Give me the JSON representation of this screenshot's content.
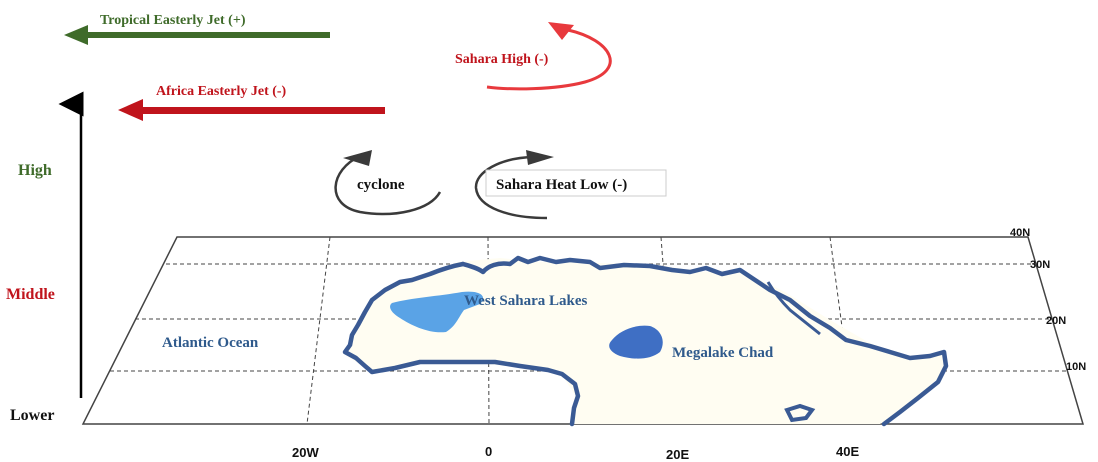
{
  "jets": {
    "tej_label": "Tropical Easterly Jet (+)",
    "aej_label": "Africa Easterly Jet (-)",
    "tej_color": "#3f6b2a",
    "aej_color": "#c0141c"
  },
  "pressure": {
    "sahara_high_label": "Sahara High (-)",
    "cyclone_label": "cyclone",
    "heat_low_label": "Sahara Heat Low (-)",
    "high_color": "#e8393d",
    "low_color": "#444444"
  },
  "levels": {
    "high": "High",
    "middle": "Middle",
    "lower": "Lower",
    "high_color": "#3f6b2a",
    "middle_color": "#c0141c",
    "lower_color": "#111111"
  },
  "map": {
    "atlantic_label": "Atlantic Ocean",
    "west_sahara_label": "West Sahara Lakes",
    "megalake_label": "Megalake Chad",
    "coast_color": "#3a5a94",
    "lake_color": "#5aa3e6",
    "megalake_color": "#3f6fc4",
    "longitudes": [
      "20W",
      "0",
      "20E",
      "40E"
    ],
    "latitudes": [
      "40N",
      "30N",
      "20N",
      "10N"
    ]
  }
}
